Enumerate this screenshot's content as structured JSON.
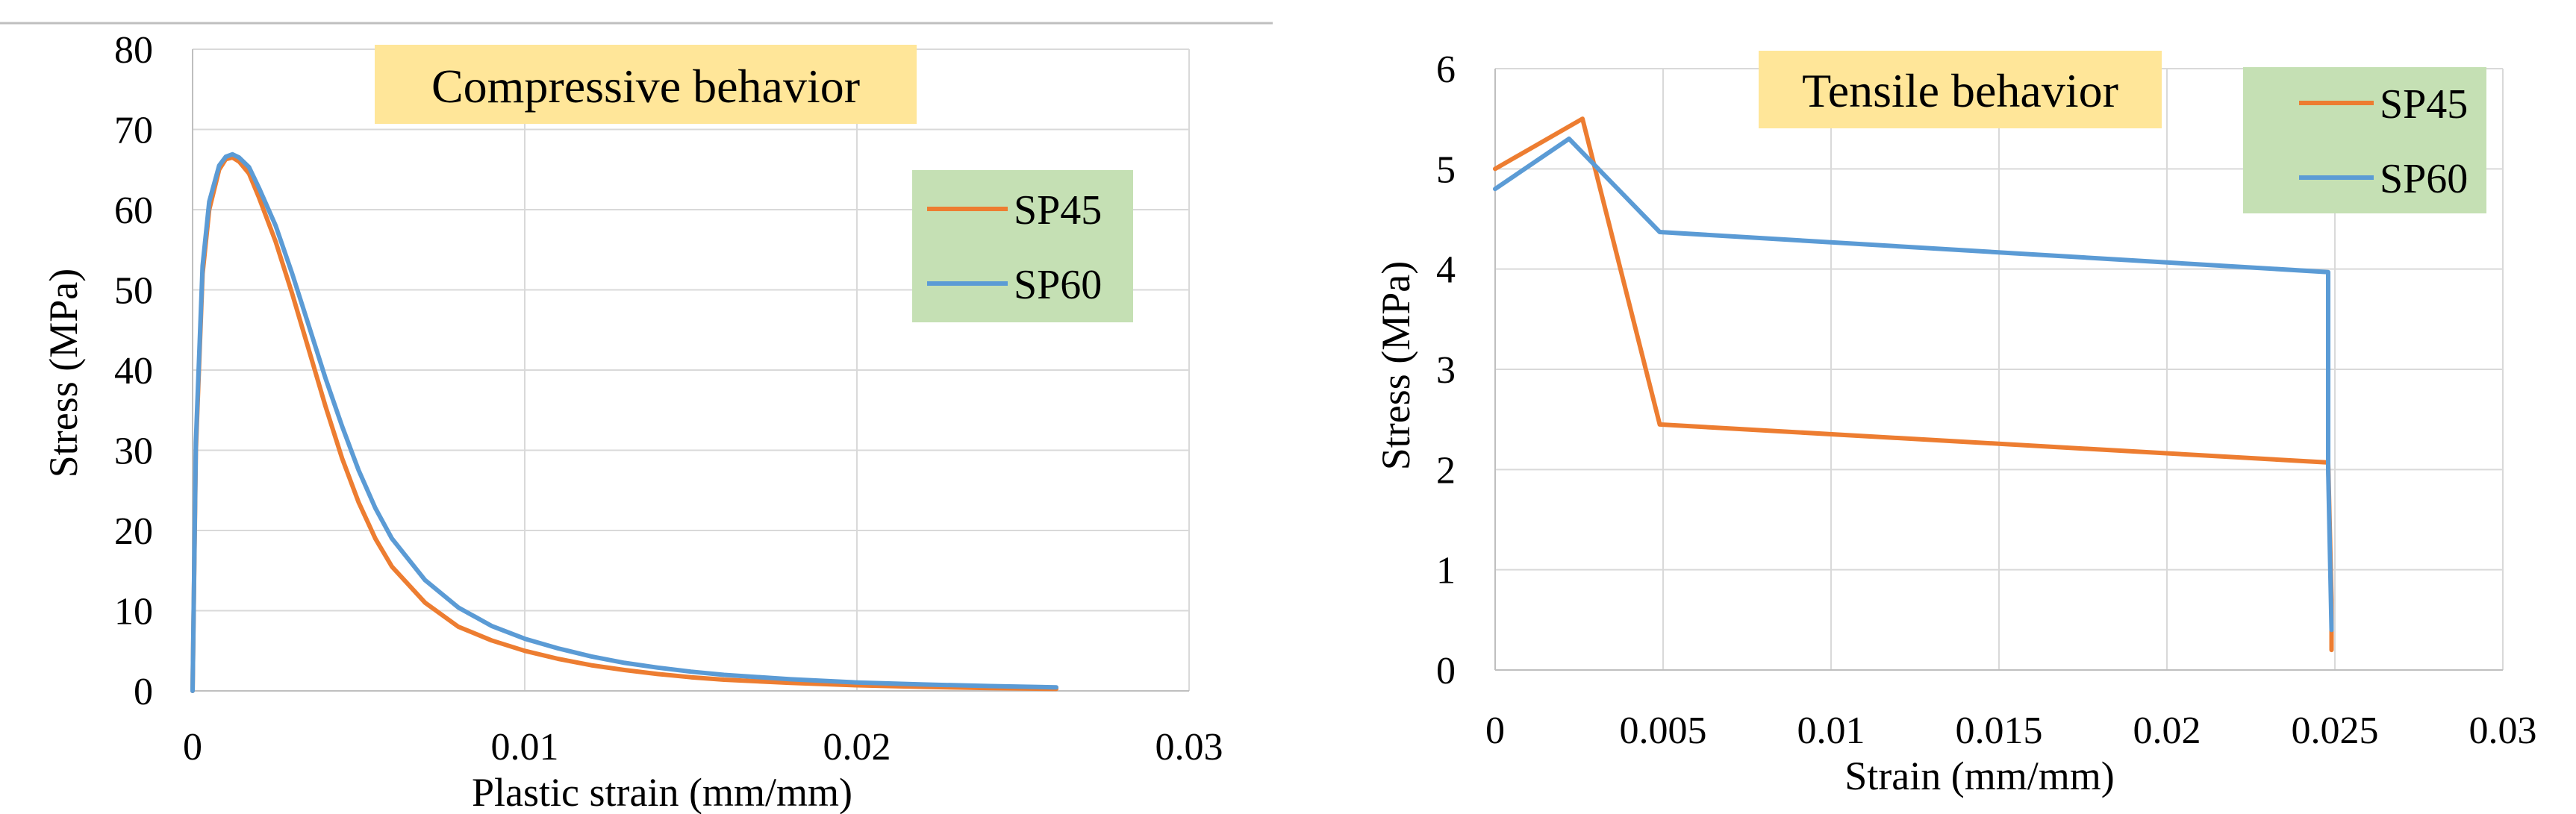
{
  "colors": {
    "sp45": "#ED7D31",
    "sp60": "#5B9BD5",
    "title_bg": "#FFE699",
    "legend_bg": "#C5E0B4",
    "grid": "#D9D9D9",
    "axis": "#BFBFBF"
  },
  "chart_data": [
    {
      "type": "line",
      "title": "Compressive behavior",
      "xlabel": "Plastic strain (mm/mm)",
      "ylabel": "Stress (MPa)",
      "xlim": [
        0,
        0.03
      ],
      "ylim": [
        0,
        80
      ],
      "xticks": [
        "0",
        "0.01",
        "0.02",
        "0.03"
      ],
      "yticks": [
        "0",
        "10",
        "20",
        "30",
        "40",
        "50",
        "60",
        "70",
        "80"
      ],
      "grid": true,
      "legend_position": "right",
      "series": [
        {
          "name": "SP45",
          "color": "#ED7D31",
          "x": [
            0,
            0.0001,
            0.0003,
            0.0005,
            0.0008,
            0.001,
            0.0012,
            0.0014,
            0.0017,
            0.002,
            0.0025,
            0.003,
            0.0035,
            0.004,
            0.0045,
            0.005,
            0.0055,
            0.006,
            0.007,
            0.008,
            0.009,
            0.01,
            0.011,
            0.012,
            0.013,
            0.014,
            0.015,
            0.016,
            0.018,
            0.02,
            0.022,
            0.024,
            0.026
          ],
          "y": [
            0,
            30,
            52,
            60,
            65,
            66.3,
            66.5,
            66,
            64.5,
            61.5,
            56,
            49.5,
            42.5,
            35.5,
            29,
            23.5,
            19,
            15.5,
            11,
            8,
            6.3,
            5,
            4,
            3.2,
            2.6,
            2.1,
            1.7,
            1.4,
            1,
            0.7,
            0.5,
            0.35,
            0.25
          ]
        },
        {
          "name": "SP60",
          "color": "#5B9BD5",
          "x": [
            0,
            0.0001,
            0.0003,
            0.0005,
            0.0008,
            0.001,
            0.0012,
            0.0014,
            0.0017,
            0.002,
            0.0025,
            0.003,
            0.0035,
            0.004,
            0.0045,
            0.005,
            0.0055,
            0.006,
            0.007,
            0.008,
            0.009,
            0.01,
            0.011,
            0.012,
            0.013,
            0.014,
            0.015,
            0.016,
            0.018,
            0.02,
            0.022,
            0.024,
            0.026
          ],
          "y": [
            0,
            31,
            53,
            61,
            65.5,
            66.6,
            66.9,
            66.5,
            65.3,
            62.7,
            58,
            52,
            45.5,
            39,
            33,
            27.5,
            22.8,
            19,
            13.8,
            10.4,
            8.1,
            6.5,
            5.3,
            4.3,
            3.5,
            2.9,
            2.4,
            2,
            1.45,
            1.05,
            0.8,
            0.6,
            0.45
          ]
        }
      ]
    },
    {
      "type": "line",
      "title": "Tensile behavior",
      "xlabel": "Strain (mm/mm)",
      "ylabel": "Stress (MPa)",
      "xlim": [
        0,
        0.03
      ],
      "ylim": [
        0,
        6
      ],
      "xticks": [
        "0",
        "0.005",
        "0.01",
        "0.015",
        "0.02",
        "0.025",
        "0.03"
      ],
      "yticks": [
        "0",
        "1",
        "2",
        "3",
        "4",
        "5",
        "6"
      ],
      "grid": true,
      "legend_position": "top-right",
      "series": [
        {
          "name": "SP45",
          "color": "#ED7D31",
          "x": [
            0,
            0.0026,
            0.0049,
            0.0248,
            0.0249,
            0.0249
          ],
          "y": [
            5.0,
            5.5,
            2.45,
            2.07,
            0.7,
            0.2
          ]
        },
        {
          "name": "SP60",
          "color": "#5B9BD5",
          "x": [
            0,
            0.0022,
            0.0049,
            0.0248,
            0.0248,
            0.0249
          ],
          "y": [
            4.8,
            5.3,
            4.37,
            3.97,
            2.0,
            0.4
          ]
        }
      ]
    }
  ]
}
